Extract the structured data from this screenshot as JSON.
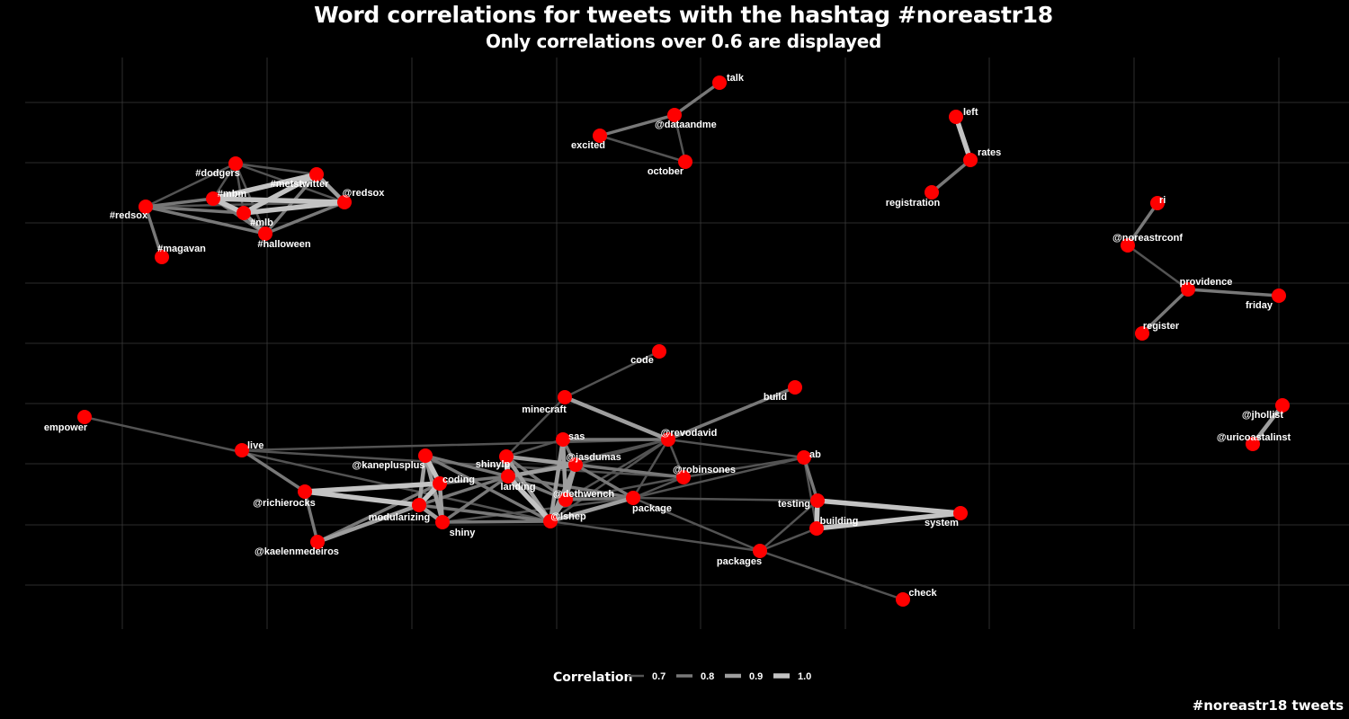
{
  "title": "Word correlations for tweets with the hashtag #noreastr18",
  "subtitle": "Only correlations over 0.6 are displayed",
  "caption": "#noreastr18 tweets",
  "legend": {
    "title": "Correlation",
    "keys": [
      {
        "label": "0.7",
        "value": 0.7
      },
      {
        "label": "0.8",
        "value": 0.8
      },
      {
        "label": "0.9",
        "value": 0.9
      },
      {
        "label": "1.0",
        "value": 1.0
      }
    ]
  },
  "colors": {
    "background": "#000000",
    "node": "#ff0000",
    "text": "#ffffff",
    "grid": "#3a3a3a"
  },
  "chart_data": {
    "type": "network",
    "nodes": [
      {
        "id": "talk",
        "label": "talk"
      },
      {
        "id": "@dataandme",
        "label": "@dataandme"
      },
      {
        "id": "excited",
        "label": "excited"
      },
      {
        "id": "october",
        "label": "october"
      },
      {
        "id": "left",
        "label": "left"
      },
      {
        "id": "rates",
        "label": "rates"
      },
      {
        "id": "registration",
        "label": "registration"
      },
      {
        "id": "#dodgers",
        "label": "#dodgers"
      },
      {
        "id": "#metstwitter",
        "label": "#metstwitter"
      },
      {
        "id": "#mbm",
        "label": "#mbm"
      },
      {
        "id": "@redsox",
        "label": "@redsox"
      },
      {
        "id": "#redsox",
        "label": "#redsox"
      },
      {
        "id": "#mlb",
        "label": "#mlb"
      },
      {
        "id": "#halloween",
        "label": "#halloween"
      },
      {
        "id": "#magavan",
        "label": "#magavan"
      },
      {
        "id": "ri",
        "label": "ri"
      },
      {
        "id": "@noreastrconf",
        "label": "@noreastrconf"
      },
      {
        "id": "providence",
        "label": "providence"
      },
      {
        "id": "friday",
        "label": "friday"
      },
      {
        "id": "register",
        "label": "register"
      },
      {
        "id": "@jhollist",
        "label": "@jhollist"
      },
      {
        "id": "@uricoastalinst",
        "label": "@uricoastalinst"
      },
      {
        "id": "code",
        "label": "code"
      },
      {
        "id": "build",
        "label": "build"
      },
      {
        "id": "minecraft",
        "label": "minecraft"
      },
      {
        "id": "empower",
        "label": "empower"
      },
      {
        "id": "live",
        "label": "live"
      },
      {
        "id": "sas",
        "label": "sas"
      },
      {
        "id": "@revodavid",
        "label": "@revodavid"
      },
      {
        "id": "@kaneplusplus",
        "label": "@kaneplusplus"
      },
      {
        "id": "shinylp",
        "label": "shinylp"
      },
      {
        "id": "@jasdumas",
        "label": "@jasdumas"
      },
      {
        "id": "ab",
        "label": "ab"
      },
      {
        "id": "coding",
        "label": "coding"
      },
      {
        "id": "landing",
        "label": "landing"
      },
      {
        "id": "@robinsones",
        "label": "@robinsones"
      },
      {
        "id": "@richierocks",
        "label": "@richierocks"
      },
      {
        "id": "@dethwench",
        "label": "@dethwench"
      },
      {
        "id": "package",
        "label": "package"
      },
      {
        "id": "testing",
        "label": "testing"
      },
      {
        "id": "modularizing",
        "label": "modularizing"
      },
      {
        "id": "@lshep",
        "label": "@lshep"
      },
      {
        "id": "system",
        "label": "system"
      },
      {
        "id": "building",
        "label": "building"
      },
      {
        "id": "shiny",
        "label": "shiny"
      },
      {
        "id": "@kaelenmedeiros",
        "label": "@kaelenmedeiros"
      },
      {
        "id": "packages",
        "label": "packages"
      },
      {
        "id": "check",
        "label": "check"
      }
    ],
    "edges": [
      {
        "source": "talk",
        "target": "@dataandme",
        "correlation": 0.8
      },
      {
        "source": "@dataandme",
        "target": "excited",
        "correlation": 0.8
      },
      {
        "source": "@dataandme",
        "target": "october",
        "correlation": 0.7
      },
      {
        "source": "excited",
        "target": "october",
        "correlation": 0.7
      },
      {
        "source": "left",
        "target": "rates",
        "correlation": 1.0
      },
      {
        "source": "rates",
        "target": "registration",
        "correlation": 0.8
      },
      {
        "source": "#dodgers",
        "target": "#metstwitter",
        "correlation": 0.7
      },
      {
        "source": "#dodgers",
        "target": "#mbm",
        "correlation": 0.7
      },
      {
        "source": "#dodgers",
        "target": "@redsox",
        "correlation": 0.7
      },
      {
        "source": "#dodgers",
        "target": "#mlb",
        "correlation": 0.7
      },
      {
        "source": "#dodgers",
        "target": "#halloween",
        "correlation": 0.7
      },
      {
        "source": "#dodgers",
        "target": "#redsox",
        "correlation": 0.7
      },
      {
        "source": "#metstwitter",
        "target": "#mbm",
        "correlation": 1.0
      },
      {
        "source": "#metstwitter",
        "target": "@redsox",
        "correlation": 0.9
      },
      {
        "source": "#metstwitter",
        "target": "#mlb",
        "correlation": 1.0
      },
      {
        "source": "#metstwitter",
        "target": "#halloween",
        "correlation": 0.8
      },
      {
        "source": "#mbm",
        "target": "@redsox",
        "correlation": 1.0
      },
      {
        "source": "#mbm",
        "target": "#mlb",
        "correlation": 1.0
      },
      {
        "source": "#mbm",
        "target": "#redsox",
        "correlation": 0.8
      },
      {
        "source": "#mbm",
        "target": "#halloween",
        "correlation": 0.8
      },
      {
        "source": "#mlb",
        "target": "@redsox",
        "correlation": 1.0
      },
      {
        "source": "#mlb",
        "target": "#halloween",
        "correlation": 0.9
      },
      {
        "source": "#mlb",
        "target": "#redsox",
        "correlation": 0.8
      },
      {
        "source": "@redsox",
        "target": "#halloween",
        "correlation": 0.8
      },
      {
        "source": "#redsox",
        "target": "#halloween",
        "correlation": 0.8
      },
      {
        "source": "#redsox",
        "target": "#magavan",
        "correlation": 0.8
      },
      {
        "source": "#redsox",
        "target": "@redsox",
        "correlation": 0.7
      },
      {
        "source": "ri",
        "target": "@noreastrconf",
        "correlation": 0.8
      },
      {
        "source": "@noreastrconf",
        "target": "providence",
        "correlation": 0.7
      },
      {
        "source": "providence",
        "target": "friday",
        "correlation": 0.8
      },
      {
        "source": "providence",
        "target": "register",
        "correlation": 0.8
      },
      {
        "source": "@jhollist",
        "target": "@uricoastalinst",
        "correlation": 0.9
      },
      {
        "source": "code",
        "target": "minecraft",
        "correlation": 0.7
      },
      {
        "source": "minecraft",
        "target": "@revodavid",
        "correlation": 0.9
      },
      {
        "source": "minecraft",
        "target": "shinylp",
        "correlation": 0.7
      },
      {
        "source": "build",
        "target": "@revodavid",
        "correlation": 0.8
      },
      {
        "source": "empower",
        "target": "@lshep",
        "correlation": 0.7
      },
      {
        "source": "live",
        "target": "@richierocks",
        "correlation": 0.8
      },
      {
        "source": "live",
        "target": "@revodavid",
        "correlation": 0.7
      },
      {
        "source": "live",
        "target": "@robinsones",
        "correlation": 0.7
      },
      {
        "source": "@richierocks",
        "target": "@kaelenmedeiros",
        "correlation": 0.8
      },
      {
        "source": "@richierocks",
        "target": "coding",
        "correlation": 1.0
      },
      {
        "source": "@richierocks",
        "target": "modularizing",
        "correlation": 1.0
      },
      {
        "source": "@kaelenmedeiros",
        "target": "modularizing",
        "correlation": 0.9
      },
      {
        "source": "@kaelenmedeiros",
        "target": "coding",
        "correlation": 0.8
      },
      {
        "source": "@kaneplusplus",
        "target": "coding",
        "correlation": 1.0
      },
      {
        "source": "@kaneplusplus",
        "target": "modularizing",
        "correlation": 0.9
      },
      {
        "source": "@kaneplusplus",
        "target": "shiny",
        "correlation": 0.9
      },
      {
        "source": "@kaneplusplus",
        "target": "landing",
        "correlation": 0.8
      },
      {
        "source": "@kaneplusplus",
        "target": "@lshep",
        "correlation": 0.8
      },
      {
        "source": "coding",
        "target": "modularizing",
        "correlation": 1.0
      },
      {
        "source": "coding",
        "target": "shiny",
        "correlation": 0.9
      },
      {
        "source": "coding",
        "target": "landing",
        "correlation": 0.8
      },
      {
        "source": "modularizing",
        "target": "shiny",
        "correlation": 0.9
      },
      {
        "source": "modularizing",
        "target": "landing",
        "correlation": 0.8
      },
      {
        "source": "modularizing",
        "target": "@lshep",
        "correlation": 0.8
      },
      {
        "source": "shiny",
        "target": "landing",
        "correlation": 0.8
      },
      {
        "source": "shiny",
        "target": "@lshep",
        "correlation": 0.8
      },
      {
        "source": "shiny",
        "target": "package",
        "correlation": 0.7
      },
      {
        "source": "shinylp",
        "target": "landing",
        "correlation": 1.0
      },
      {
        "source": "shinylp",
        "target": "@lshep",
        "correlation": 0.9
      },
      {
        "source": "shinylp",
        "target": "@jasdumas",
        "correlation": 0.9
      },
      {
        "source": "shinylp",
        "target": "@dethwench",
        "correlation": 0.8
      },
      {
        "source": "shinylp",
        "target": "@robinsones",
        "correlation": 0.7
      },
      {
        "source": "landing",
        "target": "@lshep",
        "correlation": 1.0
      },
      {
        "source": "landing",
        "target": "@jasdumas",
        "correlation": 0.9
      },
      {
        "source": "landing",
        "target": "@dethwench",
        "correlation": 0.8
      },
      {
        "source": "landing",
        "target": "package",
        "correlation": 0.8
      },
      {
        "source": "landing",
        "target": "@revodavid",
        "correlation": 0.7
      },
      {
        "source": "sas",
        "target": "@revodavid",
        "correlation": 0.8
      },
      {
        "source": "sas",
        "target": "@dethwench",
        "correlation": 0.9
      },
      {
        "source": "sas",
        "target": "@jasdumas",
        "correlation": 0.8
      },
      {
        "source": "sas",
        "target": "@lshep",
        "correlation": 0.9
      },
      {
        "source": "sas",
        "target": "shinylp",
        "correlation": 0.7
      },
      {
        "source": "@jasdumas",
        "target": "@robinsones",
        "correlation": 0.8
      },
      {
        "source": "@jasdumas",
        "target": "@dethwench",
        "correlation": 0.9
      },
      {
        "source": "@jasdumas",
        "target": "@lshep",
        "correlation": 0.9
      },
      {
        "source": "@jasdumas",
        "target": "@revodavid",
        "correlation": 0.7
      },
      {
        "source": "@dethwench",
        "target": "@lshep",
        "correlation": 0.9
      },
      {
        "source": "@dethwench",
        "target": "package",
        "correlation": 0.8
      },
      {
        "source": "@dethwench",
        "target": "@revodavid",
        "correlation": 0.7
      },
      {
        "source": "@dethwench",
        "target": "@robinsones",
        "correlation": 0.7
      },
      {
        "source": "@lshep",
        "target": "package",
        "correlation": 0.9
      },
      {
        "source": "@lshep",
        "target": "@revodavid",
        "correlation": 0.7
      },
      {
        "source": "package",
        "target": "@revodavid",
        "correlation": 0.7
      },
      {
        "source": "package",
        "target": "@robinsones",
        "correlation": 0.7
      },
      {
        "source": "package",
        "target": "testing",
        "correlation": 0.7
      },
      {
        "source": "package",
        "target": "packages",
        "correlation": 0.7
      },
      {
        "source": "package",
        "target": "ab",
        "correlation": 0.7
      },
      {
        "source": "@robinsones",
        "target": "@revodavid",
        "correlation": 0.7
      },
      {
        "source": "@robinsones",
        "target": "ab",
        "correlation": 0.7
      },
      {
        "source": "@revodavid",
        "target": "ab",
        "correlation": 0.7
      },
      {
        "source": "ab",
        "target": "testing",
        "correlation": 0.8
      },
      {
        "source": "ab",
        "target": "building",
        "correlation": 0.7
      },
      {
        "source": "testing",
        "target": "building",
        "correlation": 1.0
      },
      {
        "source": "testing",
        "target": "system",
        "correlation": 1.0
      },
      {
        "source": "building",
        "target": "system",
        "correlation": 1.0
      },
      {
        "source": "testing",
        "target": "packages",
        "correlation": 0.7
      },
      {
        "source": "building",
        "target": "packages",
        "correlation": 0.7
      },
      {
        "source": "packages",
        "target": "check",
        "correlation": 0.7
      },
      {
        "source": "@lshep",
        "target": "packages",
        "correlation": 0.7
      },
      {
        "source": "@jasdumas",
        "target": "package",
        "correlation": 0.8
      }
    ]
  }
}
